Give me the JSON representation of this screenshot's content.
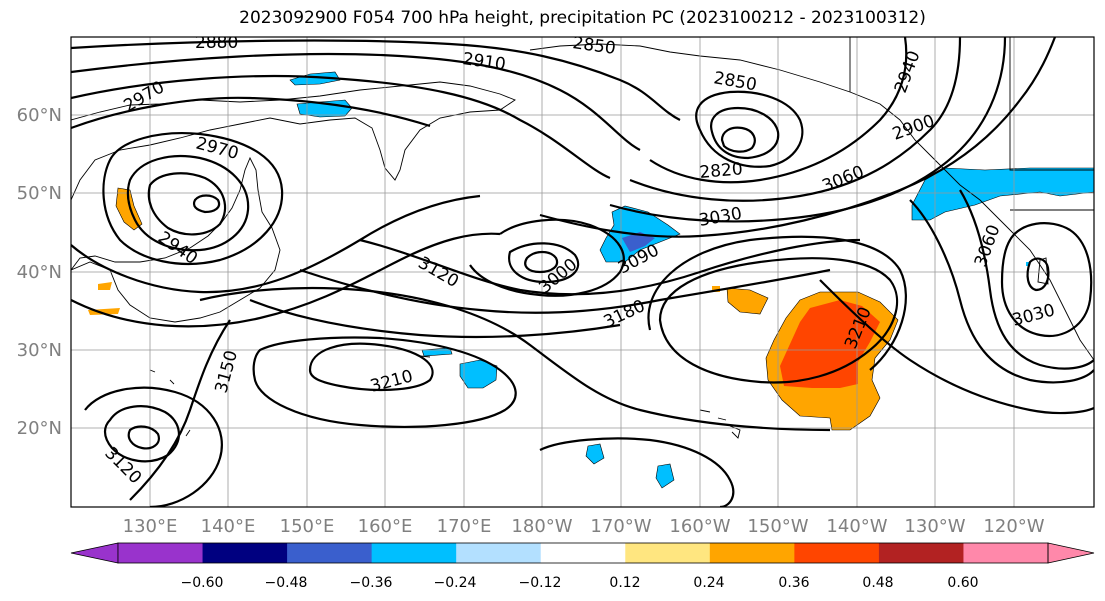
{
  "title": "2023092900 F054 700 hPa height, precipitation PC (2023100212 - 2023100312)",
  "lat_labels": [
    "60°N",
    "50°N",
    "40°N",
    "30°N",
    "20°N"
  ],
  "lon_labels": [
    "130°E",
    "140°E",
    "150°E",
    "160°E",
    "170°E",
    "180°W",
    "170°W",
    "160°W",
    "150°W",
    "140°W",
    "130°W",
    "120°W"
  ],
  "contour_labels": [
    "2880",
    "2910",
    "2850",
    "2970",
    "2850",
    "2940",
    "2970",
    "2900",
    "2820",
    "3060",
    "2940",
    "3030",
    "3000",
    "3090",
    "3120",
    "3180",
    "3060",
    "3210",
    "3030",
    "3150",
    "3210",
    "3120"
  ],
  "colorbar": {
    "colors": [
      "#9933cc",
      "#000080",
      "#3a5fcd",
      "#00bfff",
      "#b3e0ff",
      "#ffffff",
      "#ffe680",
      "#ffa500",
      "#ff4500",
      "#b22222",
      "#ff88aa"
    ],
    "tick_labels": [
      "−0.60",
      "−0.48",
      "−0.36",
      "−0.24",
      "−0.12",
      "0.12",
      "0.24",
      "0.36",
      "0.48",
      "0.60"
    ]
  },
  "map_layers": {
    "height_contours": "black",
    "precip_negative_color": "#00bfff",
    "precip_positive_color": "#ffa500"
  }
}
